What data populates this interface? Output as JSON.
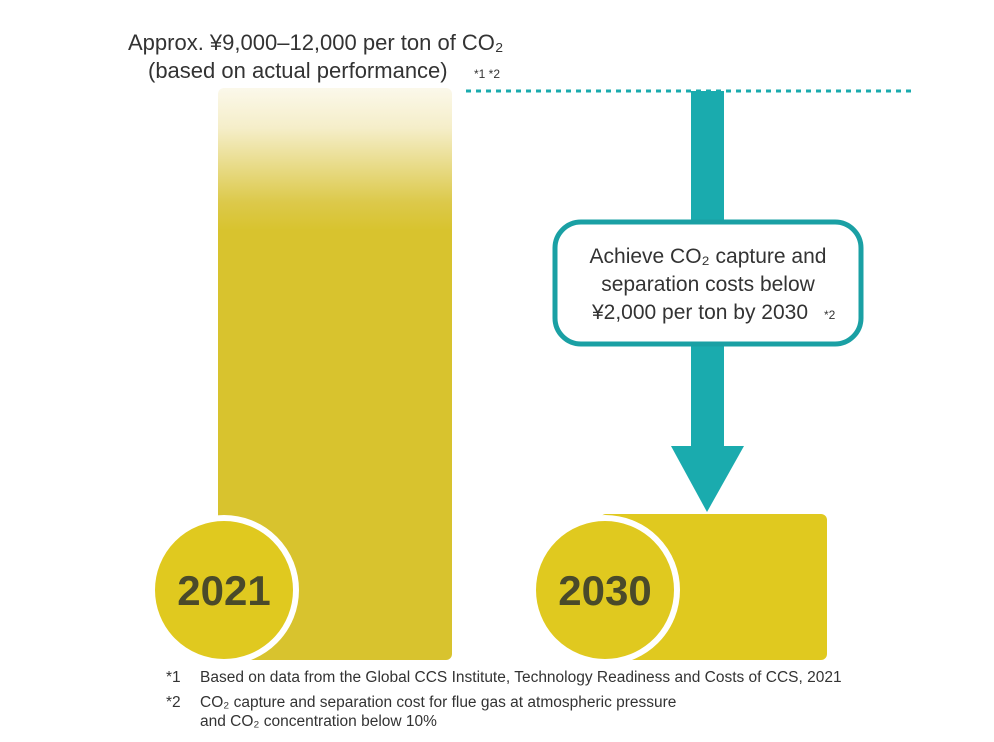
{
  "chart_data": {
    "type": "bar",
    "categories": [
      "2021",
      "2030"
    ],
    "annotations": {
      "bar_2021_label": "Approx. ¥9,000–12,000 per ton of CO₂",
      "bar_2021_label_line2": "(based on actual performance)",
      "bar_2021_note_refs": "*1 *2",
      "target_callout_line1": "Achieve CO₂ capture and",
      "target_callout_line2": "separation costs below",
      "target_callout_line3": "¥2,000 per ton by 2030",
      "target_callout_note_ref": "*2"
    },
    "title": "",
    "xlabel": "",
    "ylabel": "",
    "legend": "none",
    "grid": false,
    "colors": {
      "bar_2021": "#d8c32e",
      "bar_2021_fade_top": "#f7f2dc",
      "bar_2030": "#e0c91f",
      "year_circle": "#e0c91f",
      "arrow": "#1aabae",
      "callout_border": "#1aa0a4",
      "dotted_line": "#1aabae",
      "year_text": "#4a4a2a"
    }
  },
  "years": {
    "first": "2021",
    "second": "2030"
  },
  "footnotes": [
    {
      "mark": "*1",
      "text": "Based on data from the Global CCS Institute, Technology Readiness and Costs of CCS, 2021"
    },
    {
      "mark": "*2",
      "text": "CO₂ capture and separation cost for flue gas at atmospheric pressure\nand CO₂ concentration below 10%"
    }
  ]
}
